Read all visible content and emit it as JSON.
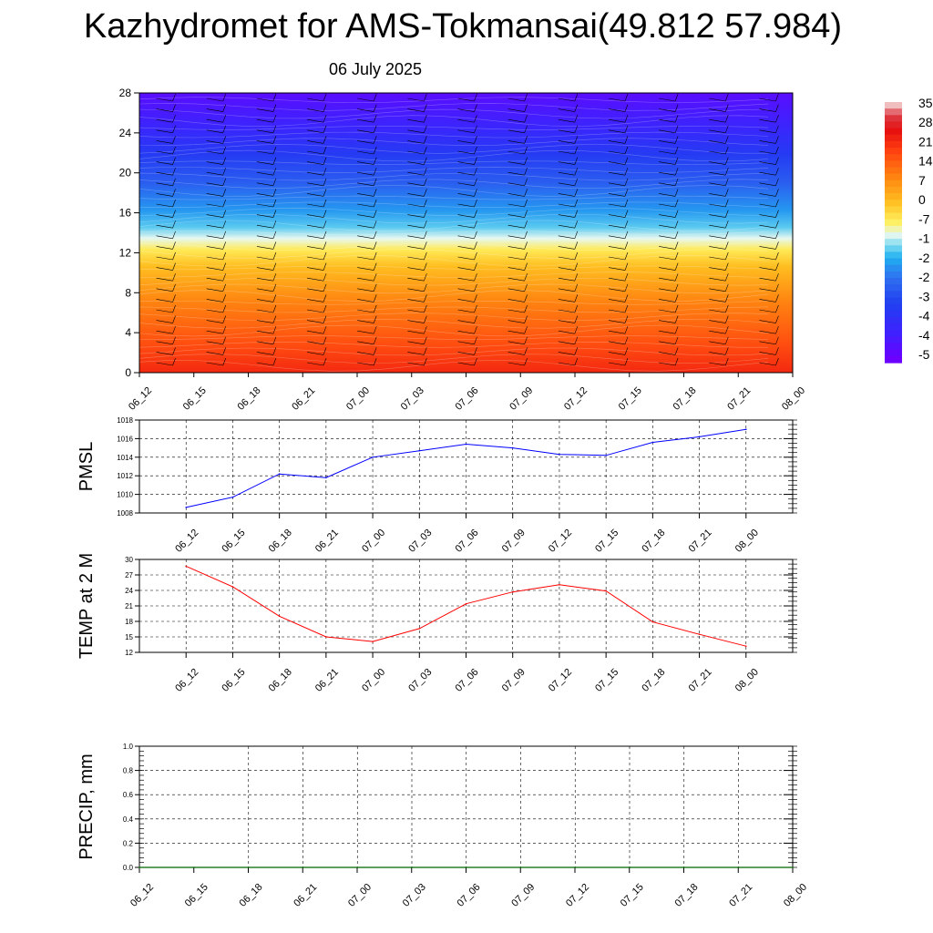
{
  "title": "Kazhydromet for AMS-Tokmansai(49.812 57.984)",
  "subtitle": "06 July 2025",
  "colors": {
    "pmsl_line": "#0000ff",
    "temp_line": "#ff0000",
    "precip_line": "#006400",
    "barb": "#000000"
  },
  "colorbar_labels": [
    "35",
    "28",
    "21",
    "14",
    "7",
    "0",
    "-7",
    "-1",
    "-2",
    "-2",
    "-3",
    "-4",
    "-4",
    "-5"
  ],
  "chart_data": [
    {
      "type": "heatmap",
      "title": "",
      "xlabel": "",
      "ylabel": "",
      "x_tick_labels": [
        "06_12",
        "06_15",
        "06_18",
        "06_21",
        "07_00",
        "07_03",
        "07_06",
        "07_09",
        "07_12",
        "07_15",
        "07_18",
        "07_21",
        "08_00"
      ],
      "y_tick_labels": [
        "0",
        "4",
        "8",
        "12",
        "16",
        "20",
        "24",
        "28"
      ],
      "ylim": [
        0,
        28
      ],
      "colormap": "temperature",
      "wind_barbs": true
    },
    {
      "type": "line",
      "ylabel": "PMSL",
      "ylim": [
        1008,
        1018
      ],
      "y_tick_labels": [
        "1008",
        "1010",
        "1012",
        "1014",
        "1016",
        "1018"
      ],
      "x": [
        "06_12",
        "06_15",
        "06_18",
        "06_21",
        "07_00",
        "07_03",
        "07_06",
        "07_09",
        "07_12",
        "07_15",
        "07_18",
        "07_21",
        "08_00"
      ],
      "values": [
        1008.6,
        1009.7,
        1012.2,
        1011.8,
        1014.0,
        1014.7,
        1015.4,
        1015.0,
        1014.3,
        1014.2,
        1015.6,
        1016.2,
        1017.0
      ],
      "grid": true
    },
    {
      "type": "line",
      "ylabel": "TEMP at 2 M",
      "ylim": [
        12,
        30
      ],
      "y_tick_labels": [
        "12",
        "15",
        "18",
        "21",
        "24",
        "27",
        "30"
      ],
      "x": [
        "06_12",
        "06_15",
        "06_18",
        "06_21",
        "07_00",
        "07_03",
        "07_06",
        "07_09",
        "07_12",
        "07_15",
        "07_18",
        "07_21",
        "08_00"
      ],
      "values": [
        28.7,
        24.7,
        19.0,
        15.0,
        14.1,
        16.6,
        21.4,
        23.7,
        25.1,
        23.9,
        17.9,
        15.5,
        13.2
      ],
      "grid": true
    },
    {
      "type": "line",
      "ylabel": "PRECIP, mm",
      "ylim": [
        0,
        1
      ],
      "y_tick_labels": [
        "0.0",
        "0.2",
        "0.4",
        "0.6",
        "0.8",
        "1.0"
      ],
      "x": [
        "06_12",
        "06_15",
        "06_18",
        "06_21",
        "07_00",
        "07_03",
        "07_06",
        "07_09",
        "07_12",
        "07_15",
        "07_18",
        "07_21",
        "08_00"
      ],
      "values": [
        0,
        0,
        0,
        0,
        0,
        0,
        0,
        0,
        0,
        0,
        0,
        0,
        0
      ],
      "grid": true
    }
  ]
}
